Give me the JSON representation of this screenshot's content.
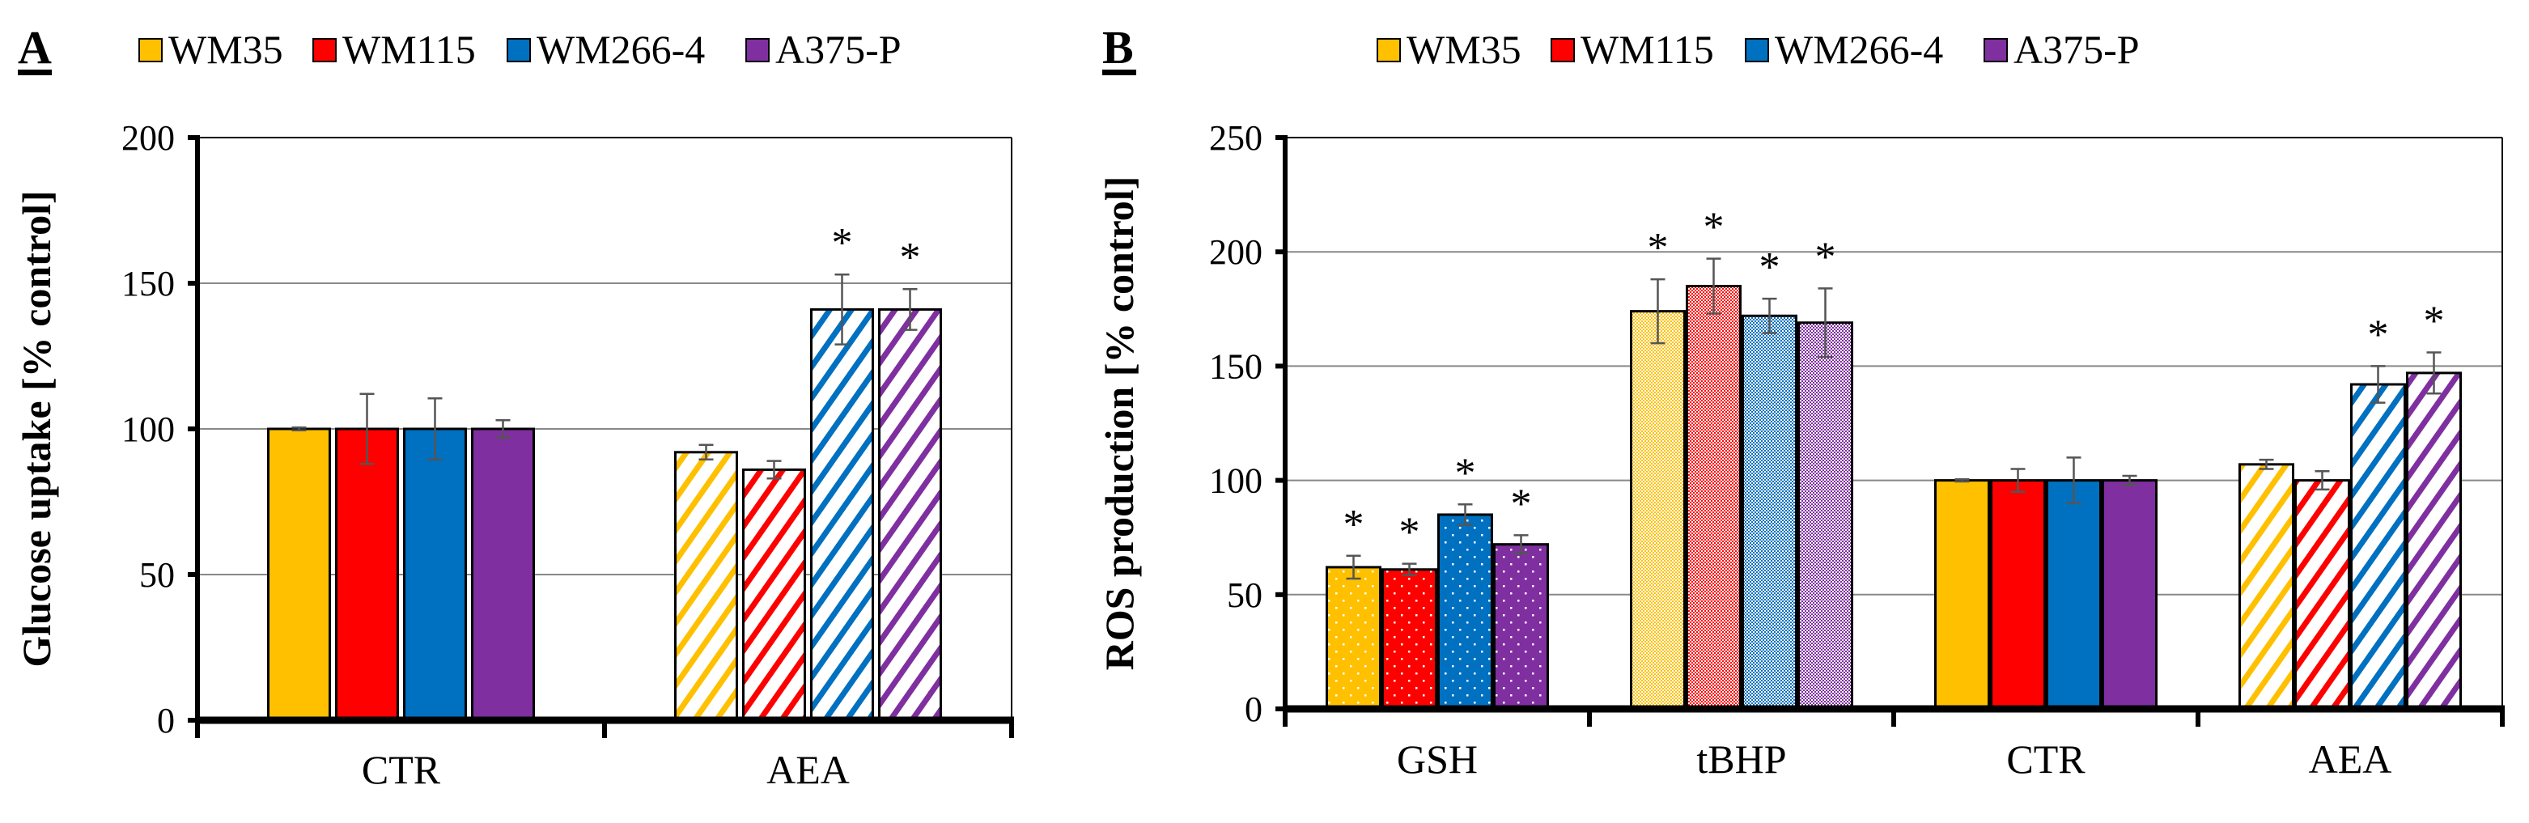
{
  "series_colors": {
    "WM35": "#FFC000",
    "WM115": "#FF0000",
    "WM266-4": "#0070C0",
    "A375-P": "#7F2FA0"
  },
  "chart_data": [
    {
      "panel": "A",
      "type": "bar",
      "ylabel": "Glucose  uptake  [% control]",
      "ylim": [
        0,
        200
      ],
      "yticks": [
        0,
        50,
        100,
        150,
        200
      ],
      "grid": true,
      "legend": "top",
      "categories": [
        "CTR",
        "AEA"
      ],
      "patterns": [
        "solid",
        "stripes"
      ],
      "series": [
        {
          "name": "WM35",
          "values": [
            100,
            92
          ],
          "errors": [
            0.5,
            2.5
          ],
          "significant": [
            false,
            false
          ]
        },
        {
          "name": "WM115",
          "values": [
            100,
            86
          ],
          "errors": [
            12,
            3
          ],
          "significant": [
            false,
            false
          ]
        },
        {
          "name": "WM266-4",
          "values": [
            100,
            141
          ],
          "errors": [
            10.5,
            12
          ],
          "significant": [
            false,
            true
          ]
        },
        {
          "name": "A375-P",
          "values": [
            100,
            141
          ],
          "errors": [
            3,
            7
          ],
          "significant": [
            false,
            true
          ]
        }
      ],
      "annotation": "*"
    },
    {
      "panel": "B",
      "type": "bar",
      "ylabel": "ROS production  [% control]",
      "ylim": [
        0,
        250
      ],
      "yticks": [
        0,
        50,
        100,
        150,
        200,
        250
      ],
      "grid": true,
      "legend": "top",
      "categories": [
        "GSH",
        "tBHP",
        "CTR",
        "AEA"
      ],
      "patterns": [
        "dots",
        "checker",
        "solid",
        "stripes"
      ],
      "series": [
        {
          "name": "WM35",
          "values": [
            62,
            174,
            100,
            107
          ],
          "errors": [
            5,
            14,
            0.5,
            2
          ],
          "significant": [
            true,
            true,
            false,
            false
          ]
        },
        {
          "name": "WM115",
          "values": [
            61,
            185,
            100,
            100
          ],
          "errors": [
            2.5,
            12,
            5,
            4
          ],
          "significant": [
            true,
            true,
            false,
            false
          ]
        },
        {
          "name": "WM266-4",
          "values": [
            85,
            172,
            100,
            142
          ],
          "errors": [
            4.5,
            7.5,
            10,
            8
          ],
          "significant": [
            true,
            true,
            false,
            true
          ]
        },
        {
          "name": "A375-P",
          "values": [
            72,
            169,
            100,
            147
          ],
          "errors": [
            4,
            15,
            2,
            9
          ],
          "significant": [
            true,
            true,
            false,
            true
          ]
        }
      ],
      "annotation": "*"
    }
  ]
}
